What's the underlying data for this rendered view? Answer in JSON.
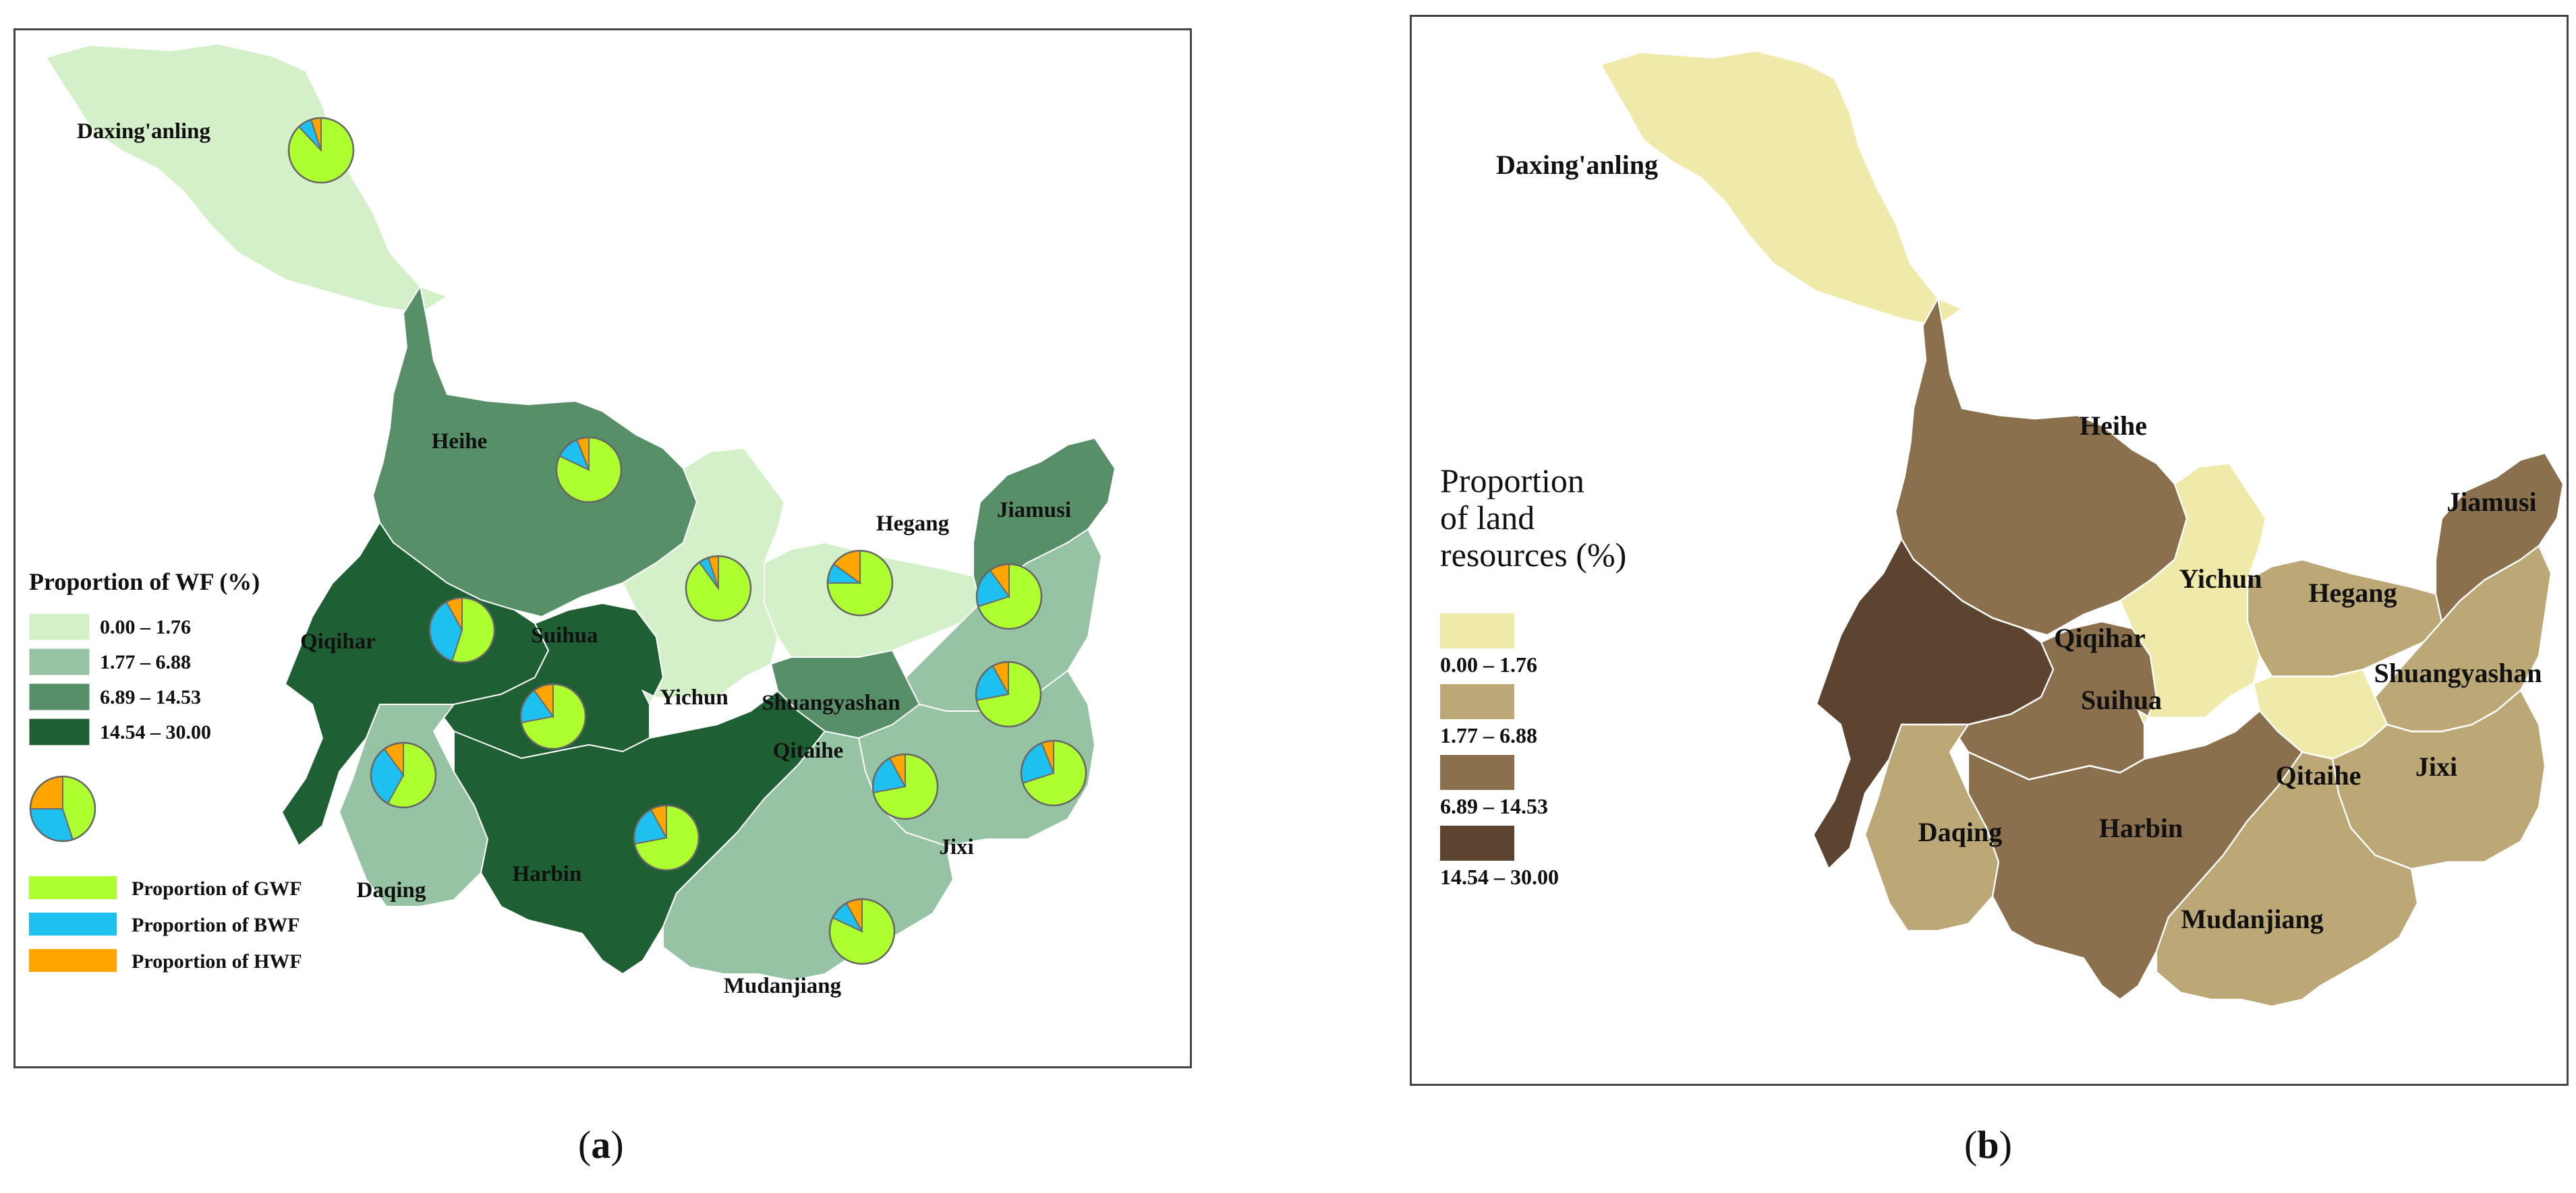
{
  "panel_a": {
    "caption_open": "(",
    "caption_letter": "a",
    "caption_close": ")",
    "legend_title": "Proportion of WF (%)",
    "classes": [
      {
        "label": "0.00 – 1.76",
        "color": "#d4f0c8"
      },
      {
        "label": "1.77 – 6.88",
        "color": "#96c3a3"
      },
      {
        "label": "6.89 – 14.53",
        "color": "#578f68"
      },
      {
        "label": "14.54 – 30.00",
        "color": "#1f5f34"
      }
    ],
    "pie_legend": [
      {
        "label": "Proportion of GWF",
        "color": "#adff2f"
      },
      {
        "label": "Proportion of BWF",
        "color": "#1ec0f0"
      },
      {
        "label": "Proportion of HWF",
        "color": "#ffa500"
      }
    ],
    "regions": [
      {
        "name": "Daxing'anling",
        "class": 0,
        "pie": [
          0.88,
          0.07,
          0.05
        ]
      },
      {
        "name": "Heihe",
        "class": 2,
        "pie": [
          0.82,
          0.12,
          0.06
        ]
      },
      {
        "name": "Qiqihar",
        "class": 3,
        "pie": [
          0.55,
          0.37,
          0.08
        ]
      },
      {
        "name": "Suihua",
        "class": 3,
        "pie": [
          0.72,
          0.18,
          0.1
        ]
      },
      {
        "name": "Yichun",
        "class": 0,
        "pie": [
          0.9,
          0.05,
          0.05
        ]
      },
      {
        "name": "Hegang",
        "class": 0,
        "pie": [
          0.75,
          0.1,
          0.15
        ]
      },
      {
        "name": "Jiamusi",
        "class": 2,
        "pie": [
          0.7,
          0.2,
          0.1
        ]
      },
      {
        "name": "Shuangyashan",
        "class": 1,
        "pie": [
          0.72,
          0.2,
          0.08
        ]
      },
      {
        "name": "Qitaihe",
        "class": 2,
        "pie": [
          0.72,
          0.2,
          0.08
        ]
      },
      {
        "name": "Jixi",
        "class": 1,
        "pie": [
          0.7,
          0.24,
          0.06
        ]
      },
      {
        "name": "Daqing",
        "class": 1,
        "pie": [
          0.58,
          0.32,
          0.1
        ]
      },
      {
        "name": "Harbin",
        "class": 3,
        "pie": [
          0.72,
          0.2,
          0.08
        ]
      },
      {
        "name": "Mudanjiang",
        "class": 1,
        "pie": [
          0.82,
          0.1,
          0.08
        ]
      }
    ]
  },
  "panel_b": {
    "caption_open": "(",
    "caption_letter": "b",
    "caption_close": ")",
    "legend_title_lines": [
      "Proportion",
      "of land",
      "resources (%)"
    ],
    "classes": [
      {
        "label": "0.00 – 1.76",
        "color": "#efeaaa"
      },
      {
        "label": "1.77 – 6.88",
        "color": "#bca877"
      },
      {
        "label": "6.89 – 14.53",
        "color": "#8b704e"
      },
      {
        "label": "14.54 – 30.00",
        "color": "#5d4430"
      }
    ],
    "regions": [
      {
        "name": "Daxing'anling",
        "class": 0
      },
      {
        "name": "Heihe",
        "class": 2
      },
      {
        "name": "Qiqihar",
        "class": 3
      },
      {
        "name": "Suihua",
        "class": 2
      },
      {
        "name": "Yichun",
        "class": 0
      },
      {
        "name": "Hegang",
        "class": 1
      },
      {
        "name": "Jiamusi",
        "class": 2
      },
      {
        "name": "Shuangyashan",
        "class": 1
      },
      {
        "name": "Qitaihe",
        "class": 0
      },
      {
        "name": "Jixi",
        "class": 1
      },
      {
        "name": "Daqing",
        "class": 1
      },
      {
        "name": "Harbin",
        "class": 2
      },
      {
        "name": "Mudanjiang",
        "class": 1
      }
    ]
  }
}
